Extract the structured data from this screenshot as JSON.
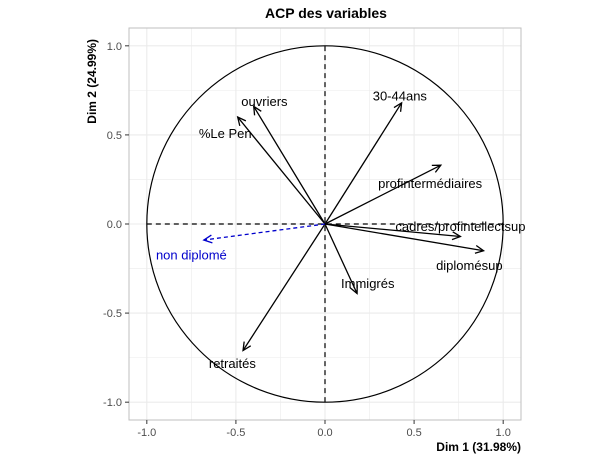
{
  "chart_data": {
    "type": "scatter",
    "title": "ACP des variables",
    "xlabel": "Dim 1 (31.98%)",
    "ylabel": "Dim 2 (24.99%)",
    "xlim": [
      -1.1,
      1.1
    ],
    "ylim": [
      -1.1,
      1.1
    ],
    "x_ticks": [
      -1.0,
      -0.5,
      0.0,
      0.5,
      1.0
    ],
    "y_ticks": [
      -1.0,
      -0.5,
      0.0,
      0.5,
      1.0
    ],
    "x_tick_labels": [
      "-1.0",
      "-0.5",
      "0.0",
      "0.5",
      "1.0"
    ],
    "y_tick_labels": [
      "-1.0",
      "-0.5",
      "0.0",
      "0.5",
      "1.0"
    ],
    "grid": true,
    "unit_circle": true,
    "colors": {
      "active": "#000000",
      "supplementary": "#0000cc",
      "grid": "#ebebeb",
      "panel_border": "#bfbfbf"
    },
    "vectors": [
      {
        "label": "30-44ans",
        "x": 0.43,
        "y": 0.68,
        "supplementary": false,
        "lx": 0.42,
        "ly": 0.72,
        "anchor": "middle"
      },
      {
        "label": "ouvriers",
        "x": -0.4,
        "y": 0.66,
        "supplementary": false,
        "lx": -0.34,
        "ly": 0.69,
        "anchor": "middle"
      },
      {
        "label": "%Le Pen",
        "x": -0.49,
        "y": 0.6,
        "supplementary": false,
        "lx": -0.56,
        "ly": 0.51,
        "anchor": "middle"
      },
      {
        "label": "profintermédiaires",
        "x": 0.65,
        "y": 0.33,
        "supplementary": false,
        "lx": 0.59,
        "ly": 0.23,
        "anchor": "middle"
      },
      {
        "label": "cadres/profintellectsup",
        "x": 0.76,
        "y": -0.07,
        "supplementary": false,
        "lx": 0.76,
        "ly": -0.01,
        "anchor": "middle"
      },
      {
        "label": "diplomésup",
        "x": 0.89,
        "y": -0.15,
        "supplementary": false,
        "lx": 0.81,
        "ly": -0.23,
        "anchor": "middle"
      },
      {
        "label": "Immigrés",
        "x": 0.18,
        "y": -0.39,
        "supplementary": false,
        "lx": 0.24,
        "ly": -0.33,
        "anchor": "middle"
      },
      {
        "label": "retraités",
        "x": -0.46,
        "y": -0.71,
        "supplementary": false,
        "lx": -0.52,
        "ly": -0.78,
        "anchor": "middle"
      },
      {
        "label": "non diplomé",
        "x": -0.68,
        "y": -0.09,
        "supplementary": true,
        "lx": -0.75,
        "ly": -0.17,
        "anchor": "middle"
      }
    ]
  }
}
